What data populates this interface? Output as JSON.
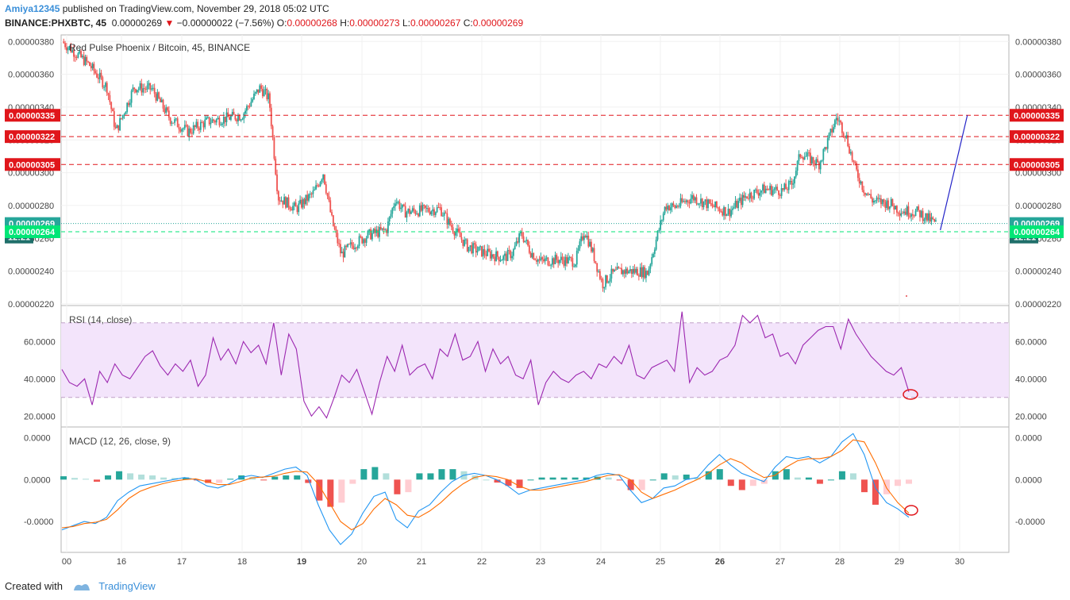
{
  "header": {
    "author": "Amiya12345",
    "published": "published on TradingView.com, November 29, 2018 05:02 UTC",
    "symbol": "BINANCE:PHXBTC, 45",
    "last": "0.00000269",
    "change": "−0.00000022 (−7.56%)",
    "o_label": "O:",
    "o_value": "0.00000268",
    "h_label": "H:",
    "h_value": "0.00000273",
    "l_label": "L:",
    "l_value": "0.00000267",
    "c_label": "C:",
    "c_value": "0.00000269"
  },
  "footer": {
    "created_with": "Created with",
    "brand": "TradingView"
  },
  "colors": {
    "up": "#26a69a",
    "down": "#ef5350",
    "rsi": "#9c27b0",
    "macd": "#2196f3",
    "signal": "#ff6d00",
    "level": "#e0161b",
    "current": "#26a69a",
    "bid": "#00e676"
  },
  "chart_data": [
    {
      "type": "candlestick",
      "title": "Red Pulse Phoenix / Bitcoin, 45, BINANCE",
      "ylim": [
        2.19e-06,
        3.84e-06
      ],
      "y_ticks": [
        "0.00000380",
        "0.00000360",
        "0.00000340",
        "0.00000320",
        "0.00000300",
        "0.00000280",
        "0.00000260",
        "0.00000240",
        "0.00000220"
      ],
      "x_ticks": [
        "00",
        "16",
        "17",
        "18",
        "19",
        "20",
        "21",
        "22",
        "23",
        "24",
        "25",
        "26",
        "27",
        "28",
        "29",
        "30"
      ],
      "bold_x_ticks": [
        "19",
        "26"
      ],
      "close_path": [
        [
          0,
          380
        ],
        [
          3,
          366
        ],
        [
          5,
          352
        ],
        [
          6,
          325
        ],
        [
          8,
          352
        ],
        [
          10,
          351
        ],
        [
          12,
          333
        ],
        [
          14,
          325
        ],
        [
          16,
          331
        ],
        [
          18,
          333
        ],
        [
          20,
          335
        ],
        [
          22,
          352
        ],
        [
          23,
          345
        ],
        [
          24,
          285
        ],
        [
          26,
          278
        ],
        [
          28,
          288
        ],
        [
          29,
          300
        ],
        [
          30,
          270
        ],
        [
          31,
          250
        ],
        [
          32,
          255
        ],
        [
          34,
          262
        ],
        [
          36,
          265
        ],
        [
          37,
          284
        ],
        [
          38,
          276
        ],
        [
          40,
          277
        ],
        [
          42,
          278
        ],
        [
          43,
          269
        ],
        [
          45,
          255
        ],
        [
          47,
          251
        ],
        [
          49,
          248
        ],
        [
          50,
          251
        ],
        [
          51,
          263
        ],
        [
          52,
          252
        ],
        [
          53,
          246
        ],
        [
          55,
          247
        ],
        [
          57,
          246
        ],
        [
          58,
          265
        ],
        [
          59,
          250
        ],
        [
          60,
          232
        ],
        [
          61,
          238
        ],
        [
          62,
          240
        ],
        [
          64,
          240
        ],
        [
          65,
          239
        ],
        [
          66,
          260
        ],
        [
          67,
          280
        ],
        [
          68,
          279
        ],
        [
          70,
          285
        ],
        [
          72,
          280
        ],
        [
          74,
          276
        ],
        [
          76,
          286
        ],
        [
          78,
          290
        ],
        [
          80,
          289
        ],
        [
          81,
          293
        ],
        [
          82,
          312
        ],
        [
          84,
          305
        ],
        [
          85,
          319
        ],
        [
          86,
          334
        ],
        [
          87,
          323
        ],
        [
          88,
          303
        ],
        [
          89,
          290
        ],
        [
          90,
          283
        ],
        [
          92,
          281
        ],
        [
          93,
          277
        ],
        [
          95,
          276
        ],
        [
          97,
          269
        ]
      ],
      "levels": [
        {
          "value": "0.00000335",
          "y": 3.35e-06
        },
        {
          "value": "0.00000322",
          "y": 3.22e-06
        },
        {
          "value": "0.00000305",
          "y": 3.05e-06
        }
      ],
      "current": {
        "value": "0.00000269",
        "y": 2.69e-06
      },
      "countdown": "12:21",
      "bid": {
        "value": "0.00000264",
        "y": 2.64e-06
      },
      "trendline": [
        [
          97.5,
          2.65e-06
        ],
        [
          100.5,
          3.35e-06
        ]
      ]
    },
    {
      "type": "line",
      "title": "RSI (14, close)",
      "ylim": [
        15,
        78
      ],
      "band": [
        30,
        70
      ],
      "y_ticks": [
        "60.0000",
        "40.0000",
        "20.0000"
      ],
      "y_tick_values": [
        60,
        40,
        20
      ],
      "series": [
        {
          "values": [
            45,
            38,
            36,
            40,
            26,
            44,
            38,
            48,
            42,
            40,
            46,
            52,
            55,
            47,
            42,
            48,
            44,
            50,
            36,
            42,
            62,
            50,
            56,
            48,
            60,
            54,
            58,
            48,
            70,
            42,
            64,
            56,
            28,
            20,
            25,
            19,
            30,
            42,
            38,
            45,
            33,
            21,
            38,
            52,
            44,
            58,
            42,
            46,
            48,
            40,
            56,
            52,
            64,
            50,
            52,
            60,
            44,
            56,
            48,
            52,
            42,
            40,
            50,
            26,
            38,
            44,
            40,
            38,
            42,
            44,
            40,
            48,
            46,
            52,
            48,
            58,
            42,
            40,
            46,
            48,
            50,
            44,
            76,
            38,
            46,
            42,
            44,
            50,
            52,
            58,
            74,
            70,
            74,
            62,
            64,
            52,
            54,
            48,
            58,
            62,
            66,
            68,
            68,
            56,
            72,
            64,
            58,
            52,
            48,
            44,
            42,
            46,
            33
          ]
        }
      ]
    },
    {
      "type": "line+histogram",
      "title": "MACD (12, 26, close, 9)",
      "y_ticks": [
        "0.0000",
        "0.0000",
        "-0.0000"
      ],
      "y_tick_values": [
        1,
        0,
        -1
      ],
      "ylim": [
        -1.7,
        1.2
      ],
      "series": [
        {
          "name": "",
          "values": [
            -1.2,
            -1.1,
            -1.0,
            -1.05,
            -0.9,
            -0.5,
            -0.3,
            -0.15,
            -0.1,
            -0.05,
            0.0,
            0.05,
            0.0,
            -0.15,
            -0.2,
            -0.1,
            0.05,
            0.1,
            0.05,
            0.15,
            0.25,
            0.3,
            0.1,
            -0.6,
            -1.2,
            -1.55,
            -1.3,
            -0.8,
            -0.4,
            -0.3,
            -0.95,
            -1.15,
            -0.75,
            -0.6,
            -0.3,
            -0.05,
            0.1,
            0.15,
            0.1,
            0.0,
            -0.15,
            -0.35,
            -0.25,
            -0.2,
            -0.15,
            -0.1,
            -0.05,
            0.0,
            0.1,
            0.15,
            0.1,
            -0.25,
            -0.55,
            -0.45,
            -0.2,
            -0.15,
            0.0,
            0.05,
            0.35,
            0.6,
            0.35,
            0.15,
            0.05,
            -0.05,
            0.3,
            0.55,
            0.5,
            0.55,
            0.4,
            0.55,
            0.9,
            1.1,
            0.6,
            -0.2,
            -0.55,
            -0.7,
            -0.9
          ]
        },
        {
          "name": "",
          "values": [
            -1.15,
            -1.12,
            -1.05,
            -1.02,
            -0.95,
            -0.72,
            -0.45,
            -0.28,
            -0.18,
            -0.1,
            -0.04,
            0.0,
            0.02,
            -0.05,
            -0.12,
            -0.12,
            -0.05,
            0.04,
            0.06,
            0.08,
            0.15,
            0.2,
            0.18,
            -0.1,
            -0.55,
            -1.0,
            -1.2,
            -1.05,
            -0.7,
            -0.45,
            -0.6,
            -0.85,
            -0.9,
            -0.75,
            -0.55,
            -0.3,
            -0.1,
            0.05,
            0.1,
            0.07,
            0.0,
            -0.15,
            -0.25,
            -0.25,
            -0.2,
            -0.15,
            -0.1,
            -0.05,
            0.03,
            0.1,
            0.12,
            0.0,
            -0.3,
            -0.45,
            -0.35,
            -0.25,
            -0.12,
            0.0,
            0.15,
            0.35,
            0.5,
            0.4,
            0.2,
            0.05,
            0.1,
            0.3,
            0.45,
            0.5,
            0.5,
            0.55,
            0.7,
            0.95,
            0.9,
            0.4,
            -0.2,
            -0.55,
            -0.8
          ]
        }
      ],
      "histogram": [
        0.08,
        0.04,
        0.02,
        -0.05,
        0.1,
        0.2,
        0.15,
        0.12,
        0.1,
        0.05,
        0.04,
        0.05,
        -0.02,
        -0.08,
        -0.08,
        0.02,
        0.1,
        0.06,
        -0.01,
        0.07,
        0.1,
        0.1,
        -0.08,
        -0.5,
        -0.65,
        -0.55,
        -0.1,
        0.25,
        0.3,
        0.15,
        -0.35,
        -0.3,
        0.15,
        0.15,
        0.25,
        0.25,
        0.2,
        0.1,
        0.0,
        -0.07,
        -0.15,
        -0.2,
        0.0,
        0.05,
        0.05,
        0.05,
        0.05,
        0.05,
        0.07,
        0.05,
        -0.02,
        -0.25,
        -0.25,
        0.0,
        0.15,
        0.1,
        0.12,
        0.05,
        0.2,
        0.25,
        -0.15,
        -0.25,
        -0.15,
        -0.1,
        0.2,
        0.25,
        0.05,
        0.05,
        -0.1,
        0.0,
        0.2,
        0.15,
        -0.3,
        -0.6,
        -0.35,
        -0.15,
        -0.1
      ]
    }
  ]
}
